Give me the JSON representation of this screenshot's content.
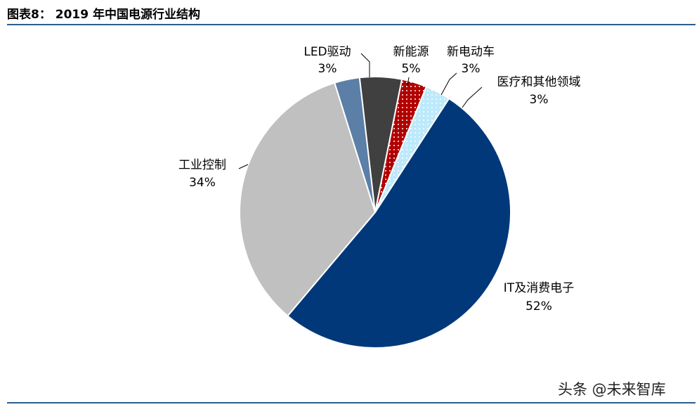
{
  "figure": {
    "title": "图表8：  2019 年中国电源行业结构"
  },
  "watermark": "头条 @未来智库",
  "colors": {
    "it": "#00387a",
    "industrial": "#c0c0c0",
    "led": "#5b7fa6",
    "new_energy": "#404040",
    "ev": "#b20000",
    "medical": "#bde9fb",
    "rule": "#2a5e8e"
  },
  "chart_data": {
    "type": "pie",
    "title": "2019 年中国电源行业结构",
    "slices": [
      {
        "label": "IT及消费电子",
        "value": 52,
        "value_label": "52%",
        "color": "#00387a"
      },
      {
        "label": "工业控制",
        "value": 34,
        "value_label": "34%",
        "color": "#c0c0c0"
      },
      {
        "label": "LED驱动",
        "value": 3,
        "value_label": "3%",
        "color": "#5b7fa6"
      },
      {
        "label": "新能源",
        "value": 5,
        "value_label": "5%",
        "color": "#404040"
      },
      {
        "label": "新电动车",
        "value": 3,
        "value_label": "3%",
        "color": "#b20000",
        "pattern": "dots"
      },
      {
        "label": "医疗和其他领域",
        "value": 3,
        "value_label": "3%",
        "color": "#bde9fb",
        "pattern": "dots"
      }
    ],
    "legend": "none"
  }
}
